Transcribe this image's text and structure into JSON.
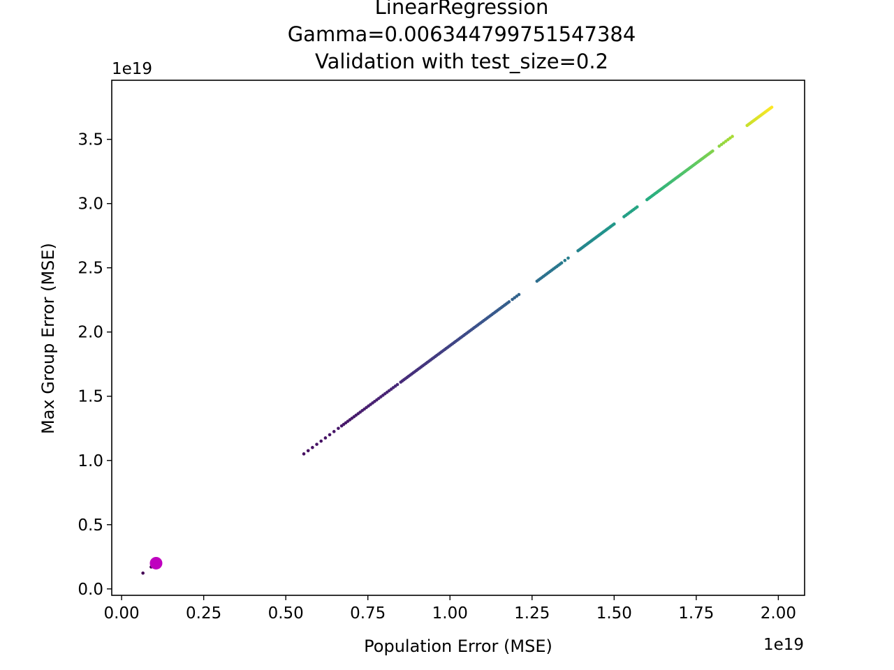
{
  "chart_data": {
    "type": "scatter",
    "title_lines": [
      "LinearRegression",
      "Gamma=0.006344799751547384",
      "Validation with test_size=0.2"
    ],
    "xlabel": "Population Error (MSE)",
    "ylabel": "Max Group Error (MSE)",
    "x_offset_label": "1e19",
    "y_offset_label": "1e19",
    "xlim": [
      -0.03,
      2.08
    ],
    "ylim": [
      -0.05,
      3.96
    ],
    "x_ticks": [
      {
        "value": 0.0,
        "label": "0.00"
      },
      {
        "value": 0.25,
        "label": "0.25"
      },
      {
        "value": 0.5,
        "label": "0.50"
      },
      {
        "value": 0.75,
        "label": "0.75"
      },
      {
        "value": 1.0,
        "label": "1.00"
      },
      {
        "value": 1.25,
        "label": "1.25"
      },
      {
        "value": 1.5,
        "label": "1.50"
      },
      {
        "value": 1.75,
        "label": "1.75"
      },
      {
        "value": 2.0,
        "label": "2.00"
      }
    ],
    "y_ticks": [
      {
        "value": 0.0,
        "label": "0.0"
      },
      {
        "value": 0.5,
        "label": "0.5"
      },
      {
        "value": 1.0,
        "label": "1.0"
      },
      {
        "value": 1.5,
        "label": "1.5"
      },
      {
        "value": 2.0,
        "label": "2.0"
      },
      {
        "value": 2.5,
        "label": "2.5"
      },
      {
        "value": 3.0,
        "label": "3.0"
      },
      {
        "value": 3.5,
        "label": "3.5"
      }
    ],
    "grid": false,
    "colormap": "viridis",
    "series": [
      {
        "color_by": "y",
        "segments": [
          {
            "x_start": 0.065,
            "x_end": 0.09,
            "count": 2
          },
          {
            "x_start": 0.555,
            "x_end": 0.66,
            "count": 9
          },
          {
            "x_start": 0.67,
            "x_end": 0.84,
            "count": 28
          },
          {
            "x_start": 0.85,
            "x_end": 1.18,
            "count": 70
          },
          {
            "x_start": 1.19,
            "x_end": 1.21,
            "count": 4
          },
          {
            "x_start": 1.265,
            "x_end": 1.34,
            "count": 16
          },
          {
            "x_start": 1.35,
            "x_end": 1.36,
            "count": 2
          },
          {
            "x_start": 1.39,
            "x_end": 1.5,
            "count": 28
          },
          {
            "x_start": 1.53,
            "x_end": 1.57,
            "count": 9
          },
          {
            "x_start": 1.6,
            "x_end": 1.8,
            "count": 48
          },
          {
            "x_start": 1.82,
            "x_end": 1.86,
            "count": 7
          },
          {
            "x_start": 1.905,
            "x_end": 1.98,
            "count": 20
          }
        ],
        "slope": 1.894,
        "intercept": 0.0
      },
      {
        "highlight": true,
        "color": "#bf00bf",
        "points": [
          {
            "x": 0.105,
            "y": 0.2
          }
        ]
      }
    ]
  }
}
